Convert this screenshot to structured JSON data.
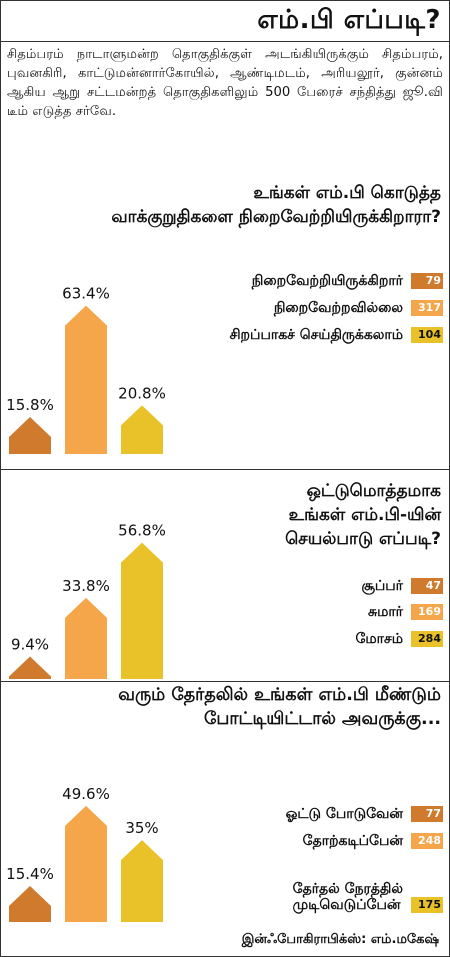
{
  "header": {
    "title": "எம்.பி எப்படி?"
  },
  "intro": "சிதம்பரம் நாடாளுமன்ற தொகுதிக்குள் அடங்கியிருக்கும் சிதம்பரம், புவனகிரி, காட்டுமன்னார்கோயில், ஆண்டிமடம், அரியலூர், குன்னம் ஆகிய ஆறு சட்டமன்றத் தொகுதிகளிலும் 500 பேரைச் சந்தித்து ஜூ.வி டீம் எடுத்த சர்வே.",
  "colors": {
    "dark": "#cf7a2d",
    "mid": "#f5a54a",
    "yellow": "#e9c22a"
  },
  "chart_data": [
    {
      "type": "bar",
      "title": "உங்கள் எம்.பி கொடுத்த வாக்குறுதிகளை நிறைவேற்றியிருக்கிறாரா?",
      "title_lines": [
        "உங்கள் எம்.பி கொடுத்த",
        "வாக்குறுதிகளை நிறைவேற்றியிருக்கிறாரா?"
      ],
      "categories": [
        "நிறைவேற்றியிருக்கிறார்",
        "நிறைவேற்றவில்லை",
        "சிறப்பாகச் செய்திருக்கலாம்"
      ],
      "label_lines": [
        [
          "நிறைவேற்றியிருக்கிறார்"
        ],
        [
          "நிறைவேற்றவில்லை"
        ],
        [
          "சிறப்பாகச் செய்திருக்கலாம்"
        ]
      ],
      "values": [
        15.8,
        63.4,
        20.8
      ],
      "value_labels": [
        "15.8%",
        "63.4%",
        "20.8%"
      ],
      "counts": [
        "79",
        "317",
        "104"
      ],
      "colors": [
        "#cf7a2d",
        "#f5a54a",
        "#e9c22a"
      ]
    },
    {
      "type": "bar",
      "title": "ஒட்டுமொத்தமாக உங்கள் எம்.பி-யின் செயல்பாடு எப்படி?",
      "title_lines": [
        "ஒட்டுமொத்தமாக",
        "உங்கள் எம்.பி-யின்",
        "செயல்பாடு எப்படி?"
      ],
      "categories": [
        "சூப்பர்",
        "சுமார்",
        "மோசம்"
      ],
      "label_lines": [
        [
          "சூப்பர்"
        ],
        [
          "சுமார்"
        ],
        [
          "மோசம்"
        ]
      ],
      "values": [
        9.4,
        33.8,
        56.8
      ],
      "value_labels": [
        "9.4%",
        "33.8%",
        "56.8%"
      ],
      "counts": [
        "47",
        "169",
        "284"
      ],
      "colors": [
        "#cf7a2d",
        "#f5a54a",
        "#e9c22a"
      ]
    },
    {
      "type": "bar",
      "title": "வரும் தேர்தலில் உங்கள் எம்.பி மீண்டும் போட்டியிட்டால் அவருக்கு...",
      "title_lines": [
        "வரும் தேர்தலில் உங்கள் எம்.பி மீண்டும்",
        "போட்டியிட்டால் அவருக்கு..."
      ],
      "categories": [
        "ஓட்டு போடுவேன்",
        "தோற்கடிப்பேன்",
        "தேர்தல் நேரத்தில் முடிவெடுப்பேன்"
      ],
      "label_lines": [
        [
          "ஓட்டு போடுவேன்"
        ],
        [
          "தோற்கடிப்பேன்"
        ],
        [
          "தேர்தல் நேரத்தில்",
          "முடிவெடுப்பேன்"
        ]
      ],
      "values": [
        15.4,
        49.6,
        35
      ],
      "value_labels": [
        "15.4%",
        "49.6%",
        "35%"
      ],
      "counts": [
        "77",
        "248",
        "175"
      ],
      "colors": [
        "#cf7a2d",
        "#f5a54a",
        "#e9c22a"
      ]
    }
  ],
  "footer": {
    "credit": "இன்ஃபோகிராபிக்ஸ்: எம்.மகேஷ்"
  }
}
